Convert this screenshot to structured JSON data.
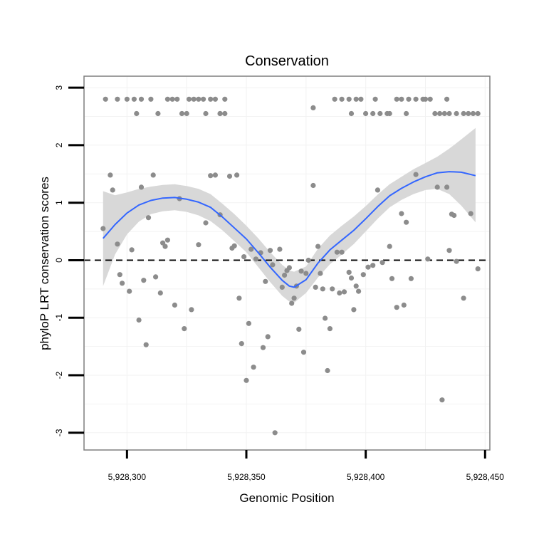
{
  "chart_data": {
    "type": "scatter",
    "title": "Conservation",
    "xlabel": "Genomic Position",
    "ylabel": "phyloP LRT conservation scores",
    "xlim": [
      5928282,
      5928452
    ],
    "ylim": [
      -3.3,
      3.2
    ],
    "x_ticks": [
      5928300,
      5928350,
      5928400,
      5928450
    ],
    "x_tick_labels": [
      "5,928,300",
      "5,928,350",
      "5,928,400",
      "5,928,450"
    ],
    "y_ticks": [
      -3,
      -2,
      -1,
      0,
      1,
      2,
      3
    ],
    "y_tick_labels": [
      "-3",
      "-2",
      "-1",
      "0",
      "1",
      "2",
      "3"
    ],
    "reference_line": {
      "y": 0,
      "style": "dashed",
      "color": "#000000"
    },
    "grid": true,
    "colors": {
      "points": "#8c8c8c",
      "smooth": "#3366ff",
      "ribbon": "#d6d6d6",
      "panel": "#ffffff",
      "grid": "#f2f2f2",
      "border": "#7f7f7f"
    },
    "points": [
      [
        5928291,
        2.8
      ],
      [
        5928296,
        2.8
      ],
      [
        5928300,
        2.8
      ],
      [
        5928303,
        2.8
      ],
      [
        5928304,
        2.55
      ],
      [
        5928306,
        2.8
      ],
      [
        5928310,
        2.8
      ],
      [
        5928313,
        2.55
      ],
      [
        5928317,
        2.8
      ],
      [
        5928319,
        2.8
      ],
      [
        5928321,
        2.8
      ],
      [
        5928323,
        2.55
      ],
      [
        5928325,
        2.55
      ],
      [
        5928326,
        2.8
      ],
      [
        5928328,
        2.8
      ],
      [
        5928330,
        2.8
      ],
      [
        5928332,
        2.8
      ],
      [
        5928333,
        2.55
      ],
      [
        5928335,
        2.8
      ],
      [
        5928337,
        2.8
      ],
      [
        5928339,
        2.55
      ],
      [
        5928341,
        2.8
      ],
      [
        5928341,
        2.55
      ],
      [
        5928339,
        2.55
      ],
      [
        5928378,
        2.65
      ],
      [
        5928387,
        2.8
      ],
      [
        5928390,
        2.8
      ],
      [
        5928393,
        2.8
      ],
      [
        5928394,
        2.55
      ],
      [
        5928396,
        2.8
      ],
      [
        5928398,
        2.8
      ],
      [
        5928400,
        2.55
      ],
      [
        5928403,
        2.55
      ],
      [
        5928404,
        2.8
      ],
      [
        5928406,
        2.55
      ],
      [
        5928409,
        2.55
      ],
      [
        5928410,
        2.55
      ],
      [
        5928413,
        2.8
      ],
      [
        5928415,
        2.8
      ],
      [
        5928417,
        2.55
      ],
      [
        5928418,
        2.8
      ],
      [
        5928421,
        2.8
      ],
      [
        5928424,
        2.8
      ],
      [
        5928425,
        2.8
      ],
      [
        5928427,
        2.8
      ],
      [
        5928429,
        2.55
      ],
      [
        5928431,
        2.55
      ],
      [
        5928433,
        2.55
      ],
      [
        5928434,
        2.8
      ],
      [
        5928435,
        2.55
      ],
      [
        5928438,
        2.55
      ],
      [
        5928441,
        2.55
      ],
      [
        5928443,
        2.55
      ],
      [
        5928445,
        2.55
      ],
      [
        5928447,
        2.55
      ],
      [
        5928290,
        0.55
      ],
      [
        5928293,
        1.48
      ],
      [
        5928294,
        1.22
      ],
      [
        5928296,
        0.28
      ],
      [
        5928297,
        -0.25
      ],
      [
        5928298,
        -0.4
      ],
      [
        5928301,
        -0.54
      ],
      [
        5928302,
        0.18
      ],
      [
        5928305,
        -1.04
      ],
      [
        5928306,
        1.27
      ],
      [
        5928307,
        -0.35
      ],
      [
        5928308,
        -1.47
      ],
      [
        5928309,
        0.74
      ],
      [
        5928311,
        1.48
      ],
      [
        5928312,
        -0.29
      ],
      [
        5928314,
        -0.57
      ],
      [
        5928315,
        0.3
      ],
      [
        5928316,
        0.24
      ],
      [
        5928317,
        0.35
      ],
      [
        5928320,
        -0.78
      ],
      [
        5928322,
        1.07
      ],
      [
        5928324,
        -1.19
      ],
      [
        5928327,
        -0.86
      ],
      [
        5928330,
        0.27
      ],
      [
        5928333,
        0.65
      ],
      [
        5928335,
        1.47
      ],
      [
        5928337,
        1.48
      ],
      [
        5928339,
        0.79
      ],
      [
        5928343,
        1.46
      ],
      [
        5928344,
        0.21
      ],
      [
        5928345,
        0.25
      ],
      [
        5928346,
        1.48
      ],
      [
        5928347,
        -0.66
      ],
      [
        5928348,
        -1.45
      ],
      [
        5928349,
        0.06
      ],
      [
        5928350,
        -2.09
      ],
      [
        5928351,
        -1.1
      ],
      [
        5928352,
        0.19
      ],
      [
        5928353,
        -1.86
      ],
      [
        5928354,
        0.02
      ],
      [
        5928356,
        0.13
      ],
      [
        5928357,
        -1.52
      ],
      [
        5928358,
        -0.37
      ],
      [
        5928359,
        -1.33
      ],
      [
        5928360,
        0.17
      ],
      [
        5928361,
        -0.08
      ],
      [
        5928362,
        -3.0
      ],
      [
        5928364,
        0.19
      ],
      [
        5928365,
        -0.47
      ],
      [
        5928366,
        -0.26
      ],
      [
        5928367,
        -0.18
      ],
      [
        5928368,
        -0.13
      ],
      [
        5928369,
        -0.75
      ],
      [
        5928370,
        -0.66
      ],
      [
        5928371,
        -0.45
      ],
      [
        5928372,
        -1.2
      ],
      [
        5928373,
        -0.19
      ],
      [
        5928374,
        -1.6
      ],
      [
        5928375,
        -0.23
      ],
      [
        5928376,
        0.0
      ],
      [
        5928378,
        1.3
      ],
      [
        5928379,
        -0.47
      ],
      [
        5928380,
        0.24
      ],
      [
        5928381,
        -0.23
      ],
      [
        5928382,
        -0.5
      ],
      [
        5928383,
        -1.01
      ],
      [
        5928384,
        -1.92
      ],
      [
        5928385,
        -1.19
      ],
      [
        5928386,
        -0.5
      ],
      [
        5928388,
        0.14
      ],
      [
        5928389,
        -0.57
      ],
      [
        5928390,
        0.14
      ],
      [
        5928391,
        -0.55
      ],
      [
        5928393,
        -0.21
      ],
      [
        5928394,
        -0.31
      ],
      [
        5928395,
        -0.86
      ],
      [
        5928396,
        -0.45
      ],
      [
        5928397,
        -0.54
      ],
      [
        5928399,
        -0.25
      ],
      [
        5928401,
        -0.12
      ],
      [
        5928403,
        -0.09
      ],
      [
        5928405,
        1.22
      ],
      [
        5928407,
        -0.04
      ],
      [
        5928410,
        0.24
      ],
      [
        5928411,
        -0.32
      ],
      [
        5928413,
        -0.82
      ],
      [
        5928415,
        0.81
      ],
      [
        5928416,
        -0.78
      ],
      [
        5928417,
        0.66
      ],
      [
        5928419,
        -0.32
      ],
      [
        5928421,
        1.49
      ],
      [
        5928426,
        0.02
      ],
      [
        5928430,
        1.27
      ],
      [
        5928432,
        -2.43
      ],
      [
        5928434,
        1.27
      ],
      [
        5928435,
        0.17
      ],
      [
        5928436,
        0.8
      ],
      [
        5928437,
        0.78
      ],
      [
        5928438,
        -0.02
      ],
      [
        5928441,
        -0.66
      ],
      [
        5928444,
        0.81
      ],
      [
        5928447,
        -0.15
      ]
    ],
    "smooth": {
      "x": [
        5928290,
        5928295,
        5928300,
        5928305,
        5928310,
        5928315,
        5928320,
        5928325,
        5928330,
        5928335,
        5928340,
        5928345,
        5928350,
        5928355,
        5928360,
        5928365,
        5928368,
        5928370,
        5928375,
        5928380,
        5928385,
        5928390,
        5928395,
        5928400,
        5928405,
        5928410,
        5928415,
        5928420,
        5928425,
        5928430,
        5928435,
        5928440,
        5928446
      ],
      "y": [
        0.38,
        0.62,
        0.82,
        0.96,
        1.04,
        1.08,
        1.09,
        1.06,
        1.01,
        0.92,
        0.75,
        0.56,
        0.37,
        0.13,
        -0.12,
        -0.35,
        -0.45,
        -0.47,
        -0.34,
        -0.05,
        0.18,
        0.35,
        0.52,
        0.72,
        0.93,
        1.12,
        1.25,
        1.36,
        1.45,
        1.52,
        1.54,
        1.53,
        1.47
      ],
      "lower": [
        -0.45,
        0.1,
        0.45,
        0.67,
        0.8,
        0.85,
        0.87,
        0.84,
        0.78,
        0.68,
        0.52,
        0.33,
        0.14,
        -0.12,
        -0.38,
        -0.62,
        -0.72,
        -0.74,
        -0.57,
        -0.3,
        -0.07,
        0.1,
        0.28,
        0.5,
        0.72,
        0.92,
        1.05,
        1.15,
        1.22,
        1.24,
        1.15,
        0.95,
        0.66
      ],
      "upper": [
        1.2,
        1.13,
        1.18,
        1.24,
        1.28,
        1.31,
        1.32,
        1.29,
        1.24,
        1.15,
        0.98,
        0.8,
        0.6,
        0.38,
        0.14,
        -0.08,
        -0.18,
        -0.2,
        -0.11,
        0.2,
        0.43,
        0.6,
        0.76,
        0.94,
        1.14,
        1.32,
        1.45,
        1.58,
        1.69,
        1.8,
        1.94,
        2.1,
        2.3
      ]
    }
  }
}
